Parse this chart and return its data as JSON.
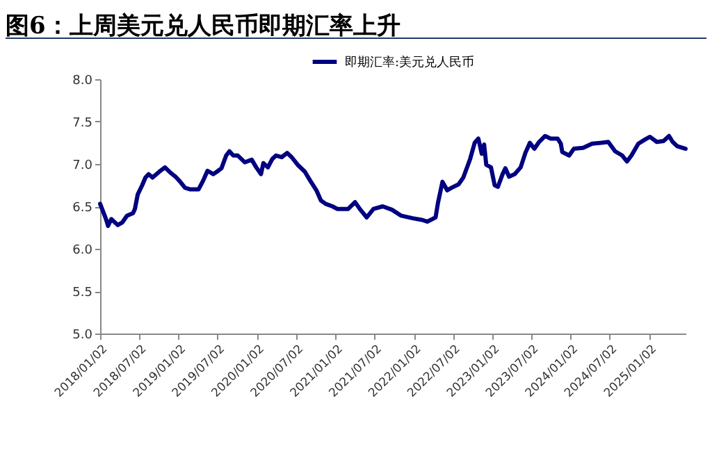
{
  "chart_data": {
    "type": "line",
    "title": "图6：上周美元兑人民币即期汇率上升",
    "legend": "top",
    "grid": false,
    "x": [
      "2018-01-02",
      "2018-01-28",
      "2018-02-08",
      "2018-02-23",
      "2018-03-25",
      "2018-04-15",
      "2018-05-07",
      "2018-06-04",
      "2018-06-13",
      "2018-06-26",
      "2018-07-17",
      "2018-08-01",
      "2018-08-16",
      "2018-09-03",
      "2018-10-05",
      "2018-10-31",
      "2018-11-24",
      "2018-12-19",
      "2019-01-10",
      "2019-02-01",
      "2019-02-26",
      "2019-04-05",
      "2019-04-26",
      "2019-05-17",
      "2019-06-13",
      "2019-06-30",
      "2019-07-21",
      "2019-08-12",
      "2019-08-27",
      "2019-09-14",
      "2019-10-05",
      "2019-11-07",
      "2019-12-09",
      "2019-12-30",
      "2020-01-21",
      "2020-02-01",
      "2020-02-22",
      "2020-03-14",
      "2020-03-31",
      "2020-04-26",
      "2020-05-22",
      "2020-06-12",
      "2020-07-10",
      "2020-08-12",
      "2020-09-07",
      "2020-10-05",
      "2020-10-26",
      "2020-11-17",
      "2020-12-19",
      "2021-01-10",
      "2021-02-12",
      "2021-03-02",
      "2021-04-03",
      "2021-04-25",
      "2021-05-27",
      "2021-06-28",
      "2021-08-10",
      "2021-09-22",
      "2021-11-04",
      "2021-12-28",
      "2022-02-09",
      "2022-03-05",
      "2022-04-13",
      "2022-04-24",
      "2022-05-15",
      "2022-06-06",
      "2022-06-27",
      "2022-07-29",
      "2022-08-20",
      "2022-09-21",
      "2022-10-12",
      "2022-10-29",
      "2022-11-14",
      "2022-11-25",
      "2022-12-05",
      "2022-12-27",
      "2023-01-13",
      "2023-01-28",
      "2023-02-19",
      "2023-03-04",
      "2023-03-21",
      "2023-04-16",
      "2023-05-14",
      "2023-06-05",
      "2023-06-26",
      "2023-07-17",
      "2023-08-08",
      "2023-09-05",
      "2023-10-01",
      "2023-11-02",
      "2023-11-17",
      "2023-11-24",
      "2023-12-26",
      "2024-01-17",
      "2024-02-29",
      "2024-04-11",
      "2024-05-23",
      "2024-06-25",
      "2024-07-27",
      "2024-08-29",
      "2024-09-20",
      "2024-10-11",
      "2024-11-12",
      "2024-12-14",
      "2025-01-05",
      "2025-02-06",
      "2025-03-09",
      "2025-04-04",
      "2025-04-21",
      "2025-05-12",
      "2025-06-20"
    ],
    "series": [
      {
        "name": "即期汇率:美元兑人民币",
        "color": "#000080",
        "values": [
          6.53,
          6.36,
          6.27,
          6.35,
          6.28,
          6.31,
          6.39,
          6.42,
          6.47,
          6.64,
          6.75,
          6.84,
          6.88,
          6.84,
          6.91,
          6.96,
          6.9,
          6.85,
          6.79,
          6.72,
          6.7,
          6.7,
          6.8,
          6.92,
          6.88,
          6.91,
          6.95,
          7.1,
          7.15,
          7.1,
          7.1,
          7.02,
          7.05,
          6.96,
          6.88,
          7.01,
          6.96,
          7.06,
          7.1,
          7.08,
          7.13,
          7.08,
          6.99,
          6.91,
          6.8,
          6.69,
          6.57,
          6.53,
          6.5,
          6.47,
          6.47,
          6.47,
          6.55,
          6.47,
          6.37,
          6.47,
          6.5,
          6.46,
          6.39,
          6.36,
          6.34,
          6.32,
          6.37,
          6.54,
          6.79,
          6.69,
          6.72,
          6.76,
          6.84,
          7.06,
          7.25,
          7.3,
          7.12,
          7.23,
          6.99,
          6.96,
          6.75,
          6.73,
          6.88,
          6.95,
          6.85,
          6.88,
          6.96,
          7.13,
          7.25,
          7.18,
          7.26,
          7.33,
          7.3,
          7.3,
          7.24,
          7.14,
          7.1,
          7.18,
          7.19,
          7.24,
          7.25,
          7.26,
          7.15,
          7.1,
          7.03,
          7.1,
          7.24,
          7.29,
          7.32,
          7.26,
          7.27,
          7.33,
          7.26,
          7.21,
          7.18
        ]
      }
    ],
    "xlim": [
      "2018-01-02",
      "2025-06-20"
    ],
    "xticks": [
      {
        "value": "2018-01-02",
        "label": "2018/01/02"
      },
      {
        "value": "2018-07-02",
        "label": "2018/07/02"
      },
      {
        "value": "2019-01-02",
        "label": "2019/01/02"
      },
      {
        "value": "2019-07-02",
        "label": "2019/07/02"
      },
      {
        "value": "2020-01-02",
        "label": "2020/01/02"
      },
      {
        "value": "2020-07-02",
        "label": "2020/07/02"
      },
      {
        "value": "2021-01-02",
        "label": "2021/01/02"
      },
      {
        "value": "2021-07-02",
        "label": "2021/07/02"
      },
      {
        "value": "2022-01-02",
        "label": "2022/01/02"
      },
      {
        "value": "2022-07-02",
        "label": "2022/07/02"
      },
      {
        "value": "2023-01-02",
        "label": "2023/01/02"
      },
      {
        "value": "2023-07-02",
        "label": "2023/07/02"
      },
      {
        "value": "2024-01-02",
        "label": "2024/01/02"
      },
      {
        "value": "2024-07-02",
        "label": "2024/07/02"
      },
      {
        "value": "2025-01-02",
        "label": "2025/01/02"
      }
    ],
    "ylim": [
      5,
      8
    ],
    "yticks": [
      {
        "value": 5,
        "label": "5.0"
      },
      {
        "value": 5.5,
        "label": "5.5"
      },
      {
        "value": 6,
        "label": "6.0"
      },
      {
        "value": 6.5,
        "label": "6.5"
      },
      {
        "value": 7,
        "label": "7.0"
      },
      {
        "value": 7.5,
        "label": "7.5"
      },
      {
        "value": 8,
        "label": "8.0"
      }
    ]
  }
}
